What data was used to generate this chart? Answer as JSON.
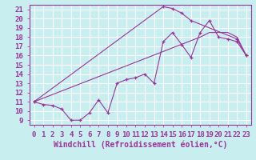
{
  "xlabel": "Windchill (Refroidissement éolien,°C)",
  "xlim": [
    -0.5,
    23.5
  ],
  "ylim": [
    8.5,
    21.5
  ],
  "xticks": [
    0,
    1,
    2,
    3,
    4,
    5,
    6,
    7,
    8,
    9,
    10,
    11,
    12,
    13,
    14,
    15,
    16,
    17,
    18,
    19,
    20,
    21,
    22,
    23
  ],
  "yticks": [
    9,
    10,
    11,
    12,
    13,
    14,
    15,
    16,
    17,
    18,
    19,
    20,
    21
  ],
  "bg_color": "#c8eef0",
  "line_color": "#993399",
  "grid_color": "#ffffff",
  "curve1_x": [
    0,
    1,
    2,
    3,
    4,
    5,
    6,
    7,
    8,
    9,
    10,
    11,
    12,
    13,
    14,
    15,
    16,
    17,
    18,
    19,
    20,
    21,
    22,
    23
  ],
  "curve1_y": [
    11,
    10.7,
    10.6,
    10.2,
    9.0,
    9.0,
    9.8,
    11.2,
    9.8,
    13.0,
    13.4,
    13.6,
    14.0,
    13.0,
    17.5,
    18.5,
    17.2,
    15.8,
    18.5,
    19.8,
    18.0,
    17.8,
    17.5,
    16.0
  ],
  "curve2_x": [
    0,
    14,
    15,
    16,
    17,
    22,
    23
  ],
  "curve2_y": [
    11,
    21.3,
    21.1,
    20.6,
    19.8,
    17.8,
    16.0
  ],
  "curve3_x": [
    0,
    18,
    19,
    20,
    21,
    22,
    23
  ],
  "curve3_y": [
    11,
    18.0,
    18.5,
    18.5,
    18.5,
    18.0,
    16.0
  ],
  "font_size": 7,
  "tick_font_size": 6.5
}
